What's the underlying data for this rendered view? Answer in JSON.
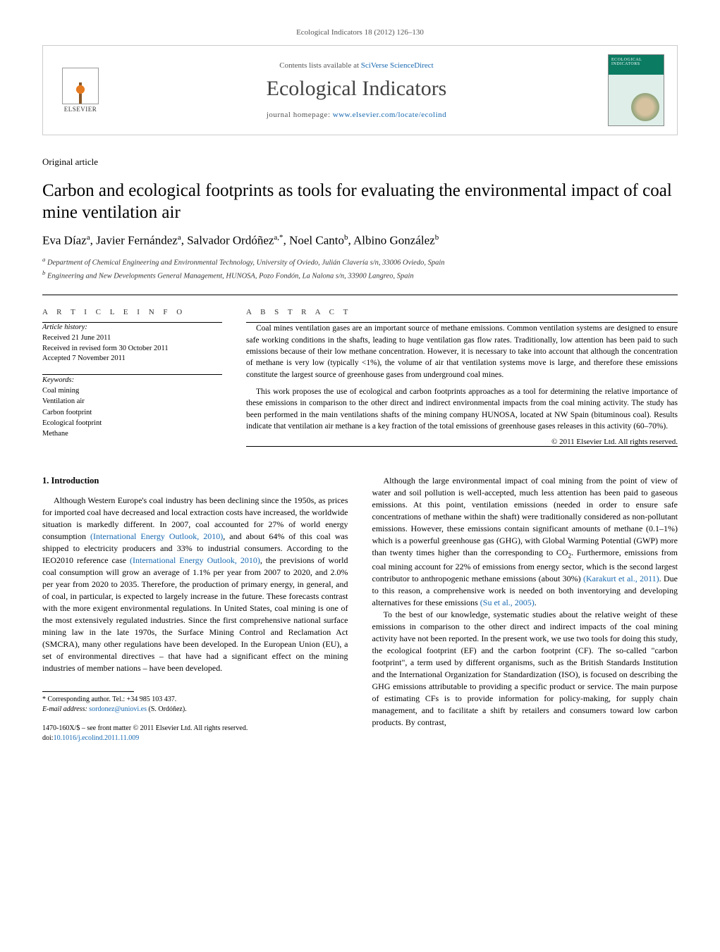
{
  "journal_ref": "Ecological Indicators 18 (2012) 126–130",
  "header": {
    "contents_prefix": "Contents lists available at ",
    "contents_link": "SciVerse ScienceDirect",
    "journal_title": "Ecological Indicators",
    "homepage_prefix": "journal homepage: ",
    "homepage_link": "www.elsevier.com/locate/ecolind",
    "publisher_name": "ELSEVIER",
    "cover_label": "ECOLOGICAL INDICATORS"
  },
  "article_type": "Original article",
  "title": "Carbon and ecological footprints as tools for evaluating the environmental impact of coal mine ventilation air",
  "authors_html": "Eva Díaz<sup>a</sup>, Javier Fernández<sup>a</sup>, Salvador Ordóñez<sup>a,*</sup>, Noel Canto<sup>b</sup>, Albino González<sup>b</sup>",
  "affiliations": {
    "a": "Department of Chemical Engineering and Environmental Technology, University of Oviedo, Julián Clavería s/n, 33006 Oviedo, Spain",
    "b": "Engineering and New Developments General Management, HUNOSA, Pozo Fondón, La Nalona s/n, 33900 Langreo, Spain"
  },
  "info": {
    "head": "A R T I C L E   I N F O",
    "history_label": "Article history:",
    "received": "Received 21 June 2011",
    "revised": "Received in revised form 30 October 2011",
    "accepted": "Accepted 7 November 2011",
    "keywords_label": "Keywords:",
    "keywords": [
      "Coal mining",
      "Ventilation air",
      "Carbon footprint",
      "Ecological footprint",
      "Methane"
    ]
  },
  "abstract": {
    "head": "A B S T R A C T",
    "p1": "Coal mines ventilation gases are an important source of methane emissions. Common ventilation systems are designed to ensure safe working conditions in the shafts, leading to huge ventilation gas flow rates. Traditionally, low attention has been paid to such emissions because of their low methane concentration. However, it is necessary to take into account that although the concentration of methane is very low (typically <1%), the volume of air that ventilation systems move is large, and therefore these emissions constitute the largest source of greenhouse gases from underground coal mines.",
    "p2": "This work proposes the use of ecological and carbon footprints approaches as a tool for determining the relative importance of these emissions in comparison to the other direct and indirect environmental impacts from the coal mining activity. The study has been performed in the main ventilations shafts of the mining company HUNOSA, located at NW Spain (bituminous coal). Results indicate that ventilation air methane is a key fraction of the total emissions of greenhouse gases releases in this activity (60–70%).",
    "copyright": "© 2011 Elsevier Ltd. All rights reserved."
  },
  "body": {
    "sec1_title": "1.  Introduction",
    "col1_p1a": "Although Western Europe's coal industry has been declining since the 1950s, as prices for imported coal have decreased and local extraction costs have increased, the worldwide situation is markedly different. In 2007, coal accounted for 27% of world energy consumption ",
    "link1": "(International Energy Outlook, 2010)",
    "col1_p1b": ", and about 64% of this coal was shipped to electricity producers and 33% to industrial consumers. According to the IEO2010 reference case ",
    "link2": "(International Energy Outlook, 2010)",
    "col1_p1c": ", the previsions of world coal consumption will grow an average of 1.1% per year from 2007 to 2020, and 2.0% per year from 2020 to 2035. Therefore, the production of primary energy, in general, and of coal, in particular, is expected to largely increase in the future. These forecasts contrast with the more exigent environmental regulations. In United States, coal mining is one of the most extensively regulated industries. Since the first comprehensive national surface mining law in the late 1970s, the Surface Mining Control and Reclamation Act (SMCRA), many other regulations have been developed. In the European Union (EU), a set of environmental directives – that have had a significant effect on the mining industries of member nations – have been developed.",
    "col2_p1a": "Although the large environmental impact of coal mining from the point of view of water and soil pollution is well-accepted, much less attention has been paid to gaseous emissions. At this point, ventilation emissions (needed in order to ensure safe concentrations of methane within the shaft) were traditionally considered as non-pollutant emissions. However, these emissions contain significant amounts of methane (0.1–1%) which is a powerful greenhouse gas (GHG), with Global Warming Potential (GWP) more than twenty times higher than the corresponding to CO",
    "col2_sub": "2",
    "col2_p1b": ". Furthermore, emissions from coal mining account for 22% of emissions from energy sector, which is the second largest contributor to anthropogenic methane emissions (about 30%) ",
    "link3": "(Karakurt et al., 2011)",
    "col2_p1c": ". Due to this reason, a comprehensive work is needed on both inventorying and developing alternatives for these emissions ",
    "link4": "(Su et al., 2005)",
    "col2_p1d": ".",
    "col2_p2": "To the best of our knowledge, systematic studies about the relative weight of these emissions in comparison to the other direct and indirect impacts of the coal mining activity have not been reported. In the present work, we use two tools for doing this study, the ecological footprint (EF) and the carbon footprint (CF). The so-called \"carbon footprint\", a term used by different organisms, such as the British Standards Institution and the International Organization for Standardization (ISO), is focused on describing the GHG emissions attributable to providing a specific product or service. The main purpose of estimating CFs is to provide information for policy-making, for supply chain management, and to facilitate a shift by retailers and consumers toward low carbon products. By contrast,"
  },
  "footnote": {
    "corr": "* Corresponding author. Tel.: +34 985 103 437.",
    "email_label": "E-mail address: ",
    "email": "sordonez@uniovi.es",
    "email_who": " (S. Ordóñez)."
  },
  "footer": {
    "line1": "1470-160X/$ – see front matter © 2011 Elsevier Ltd. All rights reserved.",
    "doi_label": "doi:",
    "doi": "10.1016/j.ecolind.2011.11.009"
  },
  "colors": {
    "link": "#1768b0",
    "text": "#000000",
    "muted": "#555555",
    "border": "#cccccc"
  }
}
